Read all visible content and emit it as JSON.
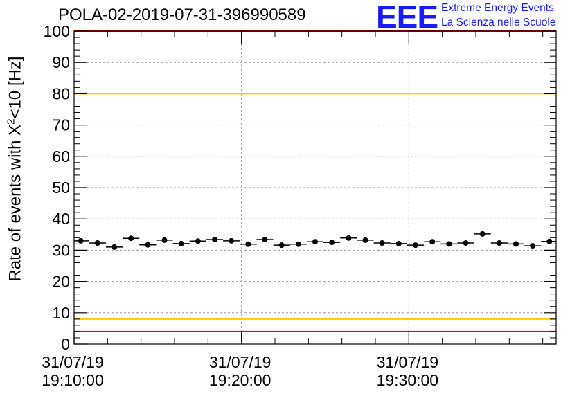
{
  "header": {
    "title": "POLA-02-2019-07-31-396990589",
    "logo_text": "EEE",
    "logo_line1": "Extreme Energy Events",
    "logo_line2": "La Scienza nelle Scuole"
  },
  "chart_data": {
    "type": "scatter",
    "title": "POLA-02-2019-07-31-396990589",
    "ylabel_prefix": "Rate of events with X",
    "ylabel_sup": "2",
    "ylabel_suffix": "<10 [Hz]",
    "ylim": [
      0,
      100
    ],
    "yticks": [
      0,
      10,
      20,
      30,
      40,
      50,
      60,
      70,
      80,
      90,
      100
    ],
    "x_range_min": [
      0,
      28.8
    ],
    "xticks": [
      {
        "at": 0,
        "date": "31/07/19",
        "time": "19:10:00"
      },
      {
        "at": 10,
        "date": "31/07/19",
        "time": "19:20:00"
      },
      {
        "at": 20,
        "date": "31/07/19",
        "time": "19:30:00"
      }
    ],
    "grid": true,
    "reference_lines": [
      {
        "y": 100,
        "color": "#ff0000"
      },
      {
        "y": 80,
        "color": "#ffcc00"
      },
      {
        "y": 8,
        "color": "#ffcc00"
      },
      {
        "y": 4,
        "color": "#ff0000"
      }
    ],
    "marker_color": "#000000",
    "bin_width_min": 1,
    "series": [
      {
        "x": [
          0.4,
          1.4,
          2.4,
          3.4,
          4.4,
          5.4,
          6.4,
          7.4,
          8.4,
          9.4,
          10.4,
          11.4,
          12.4,
          13.4,
          14.4,
          15.4,
          16.4,
          17.4,
          18.4,
          19.4,
          20.4,
          21.4,
          22.4,
          23.4,
          24.4,
          25.4,
          26.4,
          27.4,
          28.4
        ],
        "y": [
          33.0,
          32.3,
          31.0,
          33.8,
          31.7,
          33.2,
          32.1,
          32.9,
          33.4,
          33.0,
          31.9,
          33.4,
          31.6,
          31.9,
          32.7,
          32.5,
          33.9,
          33.2,
          32.3,
          32.1,
          31.6,
          32.7,
          32.0,
          32.3,
          35.2,
          32.3,
          32.0,
          31.4,
          32.8
        ]
      }
    ]
  }
}
